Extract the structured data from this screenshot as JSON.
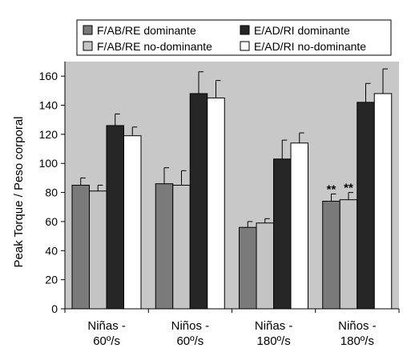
{
  "chart_data": {
    "type": "bar",
    "title": "",
    "xlabel": "",
    "ylabel": "Peak Torque / Peso corporal",
    "ylim": [
      0,
      170
    ],
    "yticks": [
      0,
      20,
      40,
      60,
      80,
      100,
      120,
      140,
      160
    ],
    "categories": [
      [
        "Niñas -",
        "60º/s"
      ],
      [
        "Niños -",
        "60º/s"
      ],
      [
        "Niñas -",
        "180º/s"
      ],
      [
        "Niños -",
        "180º/s"
      ]
    ],
    "series": [
      {
        "name": "F/AB/RE dominante",
        "color": "#7a7a7a",
        "values": [
          85,
          86,
          56,
          74
        ],
        "errors": [
          5,
          11,
          4,
          5
        ]
      },
      {
        "name": "F/AB/RE no-dominante",
        "color": "#c4c4c4",
        "values": [
          81,
          85,
          59,
          75
        ],
        "errors": [
          4,
          10,
          3,
          5
        ]
      },
      {
        "name": "E/AD/RI dominante",
        "color": "#262626",
        "values": [
          126,
          148,
          103,
          142
        ],
        "errors": [
          8,
          15,
          13,
          13
        ]
      },
      {
        "name": "E/AD/RI no-dominante",
        "color": "#ffffff",
        "values": [
          119,
          145,
          114,
          148
        ],
        "errors": [
          6,
          12,
          7,
          17
        ]
      }
    ],
    "annotations": [
      {
        "category": 3,
        "series": 0,
        "text": "**"
      },
      {
        "category": 3,
        "series": 1,
        "text": "**"
      }
    ],
    "legend_position": "top",
    "plot_background": "#c8c8c8",
    "grid": false
  }
}
